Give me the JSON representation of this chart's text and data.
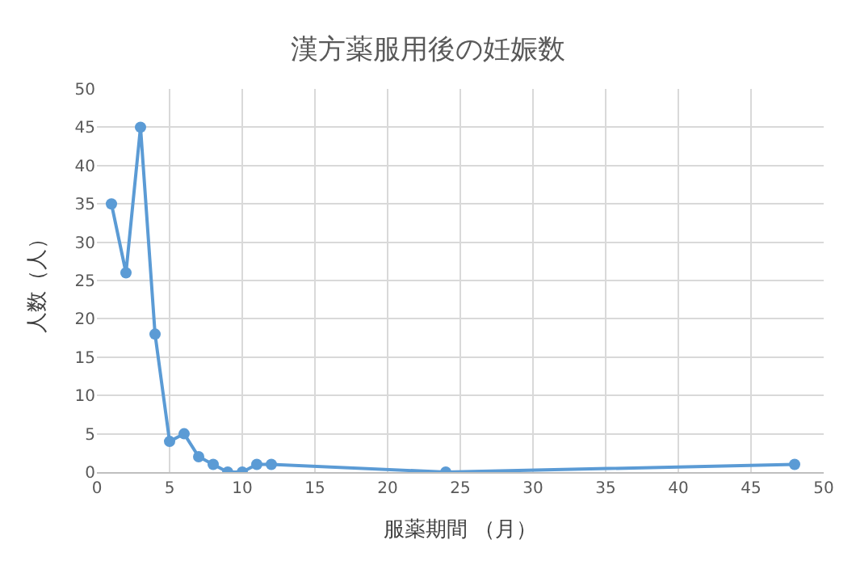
{
  "chart_data": {
    "type": "line",
    "title": "漢方薬服用後の妊娠数",
    "xlabel": "服薬期間 （月）",
    "ylabel": "人数（人）",
    "x": [
      1,
      2,
      3,
      4,
      5,
      6,
      7,
      8,
      9,
      10,
      11,
      12,
      24,
      48
    ],
    "series": [
      {
        "color": "#5b9bd5",
        "values": [
          35,
          26,
          45,
          18,
          4,
          5,
          2,
          1,
          0,
          0,
          1,
          1,
          0,
          1
        ]
      }
    ],
    "xlim": [
      0,
      50
    ],
    "xticks": [
      0,
      5,
      10,
      15,
      20,
      25,
      30,
      35,
      40,
      45,
      50
    ],
    "ylim": [
      0,
      50
    ],
    "yticks": [
      0,
      5,
      10,
      15,
      20,
      25,
      30,
      35,
      40,
      45,
      50
    ],
    "grid": true,
    "marker": "circle",
    "line_style": "solid"
  }
}
